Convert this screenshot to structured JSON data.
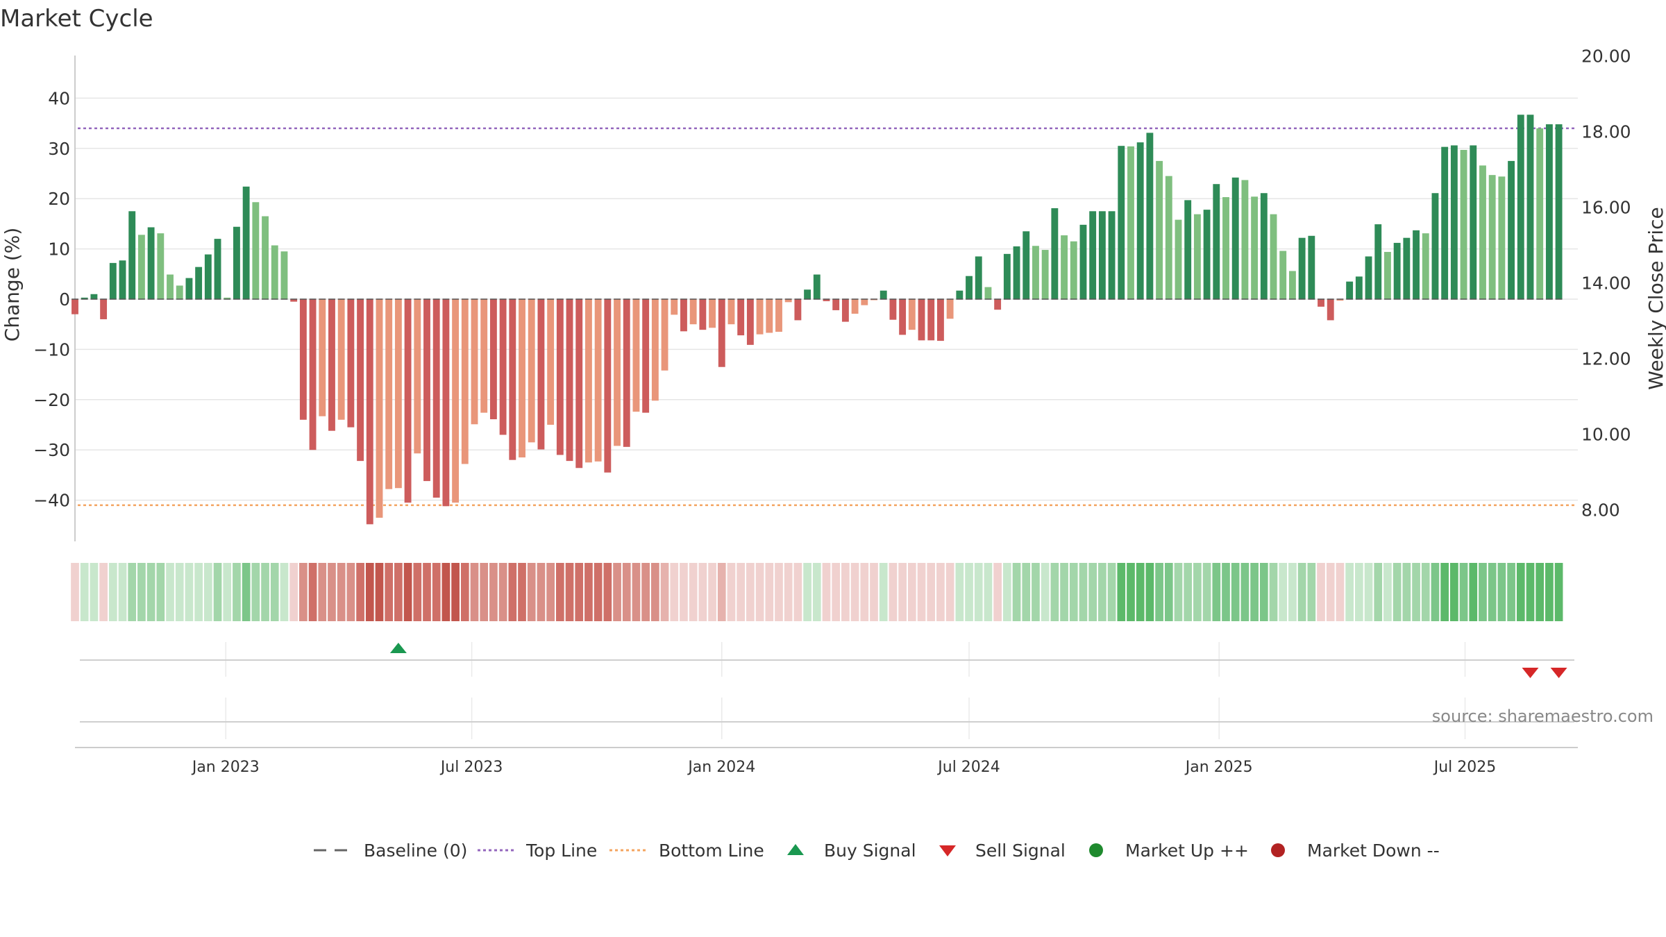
{
  "chart_data": {
    "type": "bar",
    "title": "Market Cycle",
    "ylabel": "Change (%)",
    "ylabel_right": "Weekly Close Price",
    "ylim": [
      -48,
      48
    ],
    "ylim_right": [
      7.2,
      20.0
    ],
    "yticks": [
      40,
      30,
      20,
      10,
      0,
      -10,
      -20,
      -30,
      -40
    ],
    "ytick_labels": [
      "40",
      "30",
      "20",
      "10",
      "0",
      "−10",
      "−20",
      "−30",
      "−40"
    ],
    "yticks_right": [
      20,
      18,
      16,
      14,
      12,
      10,
      8
    ],
    "ytick_right_labels": [
      "20.00",
      "18.00",
      "16.00",
      "14.00",
      "12.00",
      "10.00",
      "8.00"
    ],
    "xlim": [
      "2022-09-12",
      "2025-09-22"
    ],
    "xticks": [
      {
        "date": "2023-01-01",
        "label": "Jan 2023"
      },
      {
        "date": "2023-07-01",
        "label": "Jul 2023"
      },
      {
        "date": "2024-01-01",
        "label": "Jan 2024"
      },
      {
        "date": "2024-07-01",
        "label": "Jul 2024"
      },
      {
        "date": "2025-01-01",
        "label": "Jan 2025"
      },
      {
        "date": "2025-07-01",
        "label": "Jul 2025"
      }
    ],
    "grid": true,
    "legend_position": "bottom",
    "source": "source: sharemaestro.com",
    "top_line": 34,
    "bottom_line": -41,
    "series": [
      {
        "start_date": "2022-09-12",
        "interval": "weekly",
        "values": [
          -3,
          0.3,
          1,
          -4,
          7.2,
          7.7,
          17.5,
          12.8,
          14.3,
          13.1,
          4.9,
          2.7,
          4.2,
          6.4,
          8.9,
          12,
          0.3,
          14.4,
          22.4,
          19.3,
          16.5,
          10.7,
          9.5,
          -0.5,
          -24,
          -30,
          -23.3,
          -26.2,
          -24,
          -25.5,
          -32.2,
          -44.8,
          -43.5,
          -37.8,
          -37.6,
          -40.5,
          -30.7,
          -36.2,
          -39.5,
          -41.2,
          -40.5,
          -32.8,
          -24.9,
          -22.6,
          -23.9,
          -27,
          -32,
          -31.5,
          -28.5,
          -29.9,
          -25,
          -31,
          -32.2,
          -33.6,
          -32.5,
          -32.3,
          -34.5,
          -29.2,
          -29.4,
          -22.4,
          -22.6,
          -20.2,
          -14.2,
          -3.1,
          -6.4,
          -5,
          -6.1,
          -5.7,
          -13.5,
          -5,
          -7.2,
          -9.1,
          -7,
          -6.7,
          -6.5,
          -0.6,
          -4.2,
          1.9,
          4.9,
          -0.4,
          -2.2,
          -4.5,
          -2.9,
          -1.2,
          -0.2,
          1.7,
          -4.1,
          -7.1,
          -6.1,
          -8.2,
          -8.2,
          -8.3,
          -3.9,
          1.7,
          4.6,
          8.5,
          2.4,
          -2.1,
          9,
          10.5,
          13.5,
          10.6,
          9.8,
          18.1,
          12.7,
          11.5,
          14.8,
          17.5,
          17.5,
          17.5,
          30.5,
          30.4,
          31.2,
          33.1,
          27.5,
          24.5,
          15.8,
          19.7,
          16.9,
          17.8,
          22.9,
          20.3,
          24.2,
          23.7,
          20.4,
          21.1,
          16.9,
          9.6,
          5.6,
          12.2,
          12.6,
          -1.5,
          -4.2,
          -0.3,
          3.5,
          4.5,
          8.5,
          14.9,
          9.4,
          11.2,
          12.2,
          13.7,
          13.1,
          21.1,
          30.3,
          30.6,
          29.7,
          30.6,
          26.6,
          24.7,
          24.4,
          27.5,
          36.7,
          36.7,
          34,
          34.8,
          34.8
        ]
      }
    ],
    "legend": [
      {
        "name": "Baseline (0)",
        "symbol": "dash",
        "color": "#666666"
      },
      {
        "name": "Top Line",
        "symbol": "dotted",
        "color": "#9467bd"
      },
      {
        "name": "Bottom Line",
        "symbol": "dotted",
        "color": "#f4a460"
      },
      {
        "name": "Buy Signal",
        "symbol": "triangle-up",
        "color": "#1a9850"
      },
      {
        "name": "Sell Signal",
        "symbol": "triangle-down",
        "color": "#d62728"
      },
      {
        "name": "Market Up ++",
        "symbol": "circle",
        "color": "#1f8a2e"
      },
      {
        "name": "Market Down --",
        "symbol": "circle",
        "color": "#b22222"
      }
    ],
    "signals": {
      "buy": [
        "2023-05-08"
      ],
      "sell": [
        "2025-08-18",
        "2025-09-08"
      ]
    },
    "colors": {
      "strong_up": "#2e8b57",
      "weak_up": "#7fbf7f",
      "strong_down": "#cd5c5c",
      "weak_down": "#e9967a",
      "top_line": "#9467bd",
      "bottom_line": "#f4a460"
    }
  }
}
